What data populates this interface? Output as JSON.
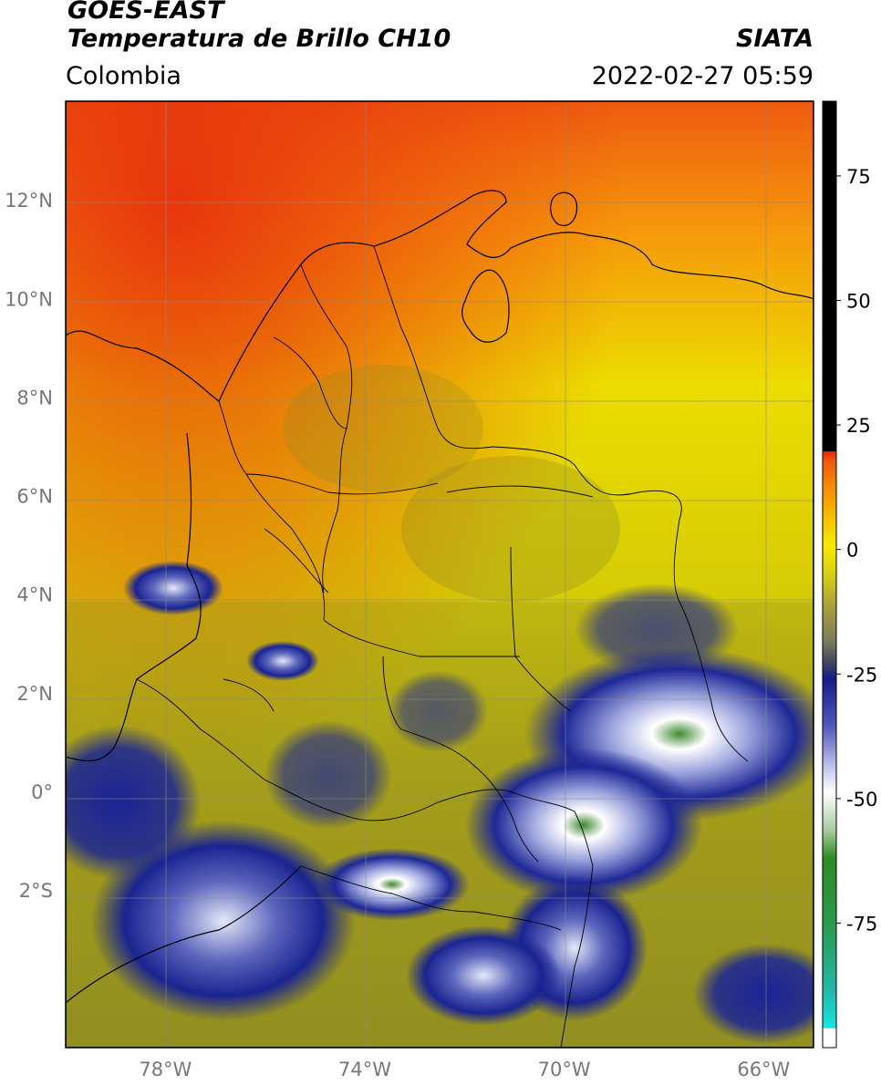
{
  "header": {
    "satellite": "GOES-EAST",
    "product": "Temperatura de Brillo CH10",
    "organization": "SIATA",
    "region": "Colombia",
    "timestamp": "2022-02-27 05:59"
  },
  "map": {
    "lat_labels": [
      {
        "value": 12,
        "label": "12°N"
      },
      {
        "value": 10,
        "label": "10°N"
      },
      {
        "value": 8,
        "label": "8°N"
      },
      {
        "value": 6,
        "label": "6°N"
      },
      {
        "value": 4,
        "label": "4°N"
      },
      {
        "value": 2,
        "label": "2°N"
      },
      {
        "value": 0,
        "label": "0°"
      },
      {
        "value": -2,
        "label": "2°S"
      }
    ],
    "lon_labels": [
      {
        "value": -78,
        "label": "78°W"
      },
      {
        "value": -74,
        "label": "74°W"
      },
      {
        "value": -70,
        "label": "70°W"
      },
      {
        "value": -66,
        "label": "66°W"
      }
    ],
    "extent": {
      "lon_min": -80,
      "lon_max": -65,
      "lat_min": -5.2,
      "lat_max": 14
    }
  },
  "colorbar": {
    "min": -100,
    "max": 90,
    "ticks": [
      {
        "value": 75,
        "label": "75"
      },
      {
        "value": 50,
        "label": "50"
      },
      {
        "value": 25,
        "label": "25"
      },
      {
        "value": 0,
        "label": "0"
      },
      {
        "value": -25,
        "label": "-25"
      },
      {
        "value": -50,
        "label": "-50"
      },
      {
        "value": -75,
        "label": "-75"
      }
    ],
    "colors": {
      "above_8": "#000000",
      "warm": "#e83410",
      "orange": "#f59a00",
      "yellow": "#f2ea00",
      "olive": "#8d8d24",
      "grey": "#5e5e4e",
      "navy": "#18229a",
      "light": "#e8ecf8",
      "green": "#2e8a22",
      "cyan": "#18e0e0",
      "white": "#ffffff"
    }
  }
}
